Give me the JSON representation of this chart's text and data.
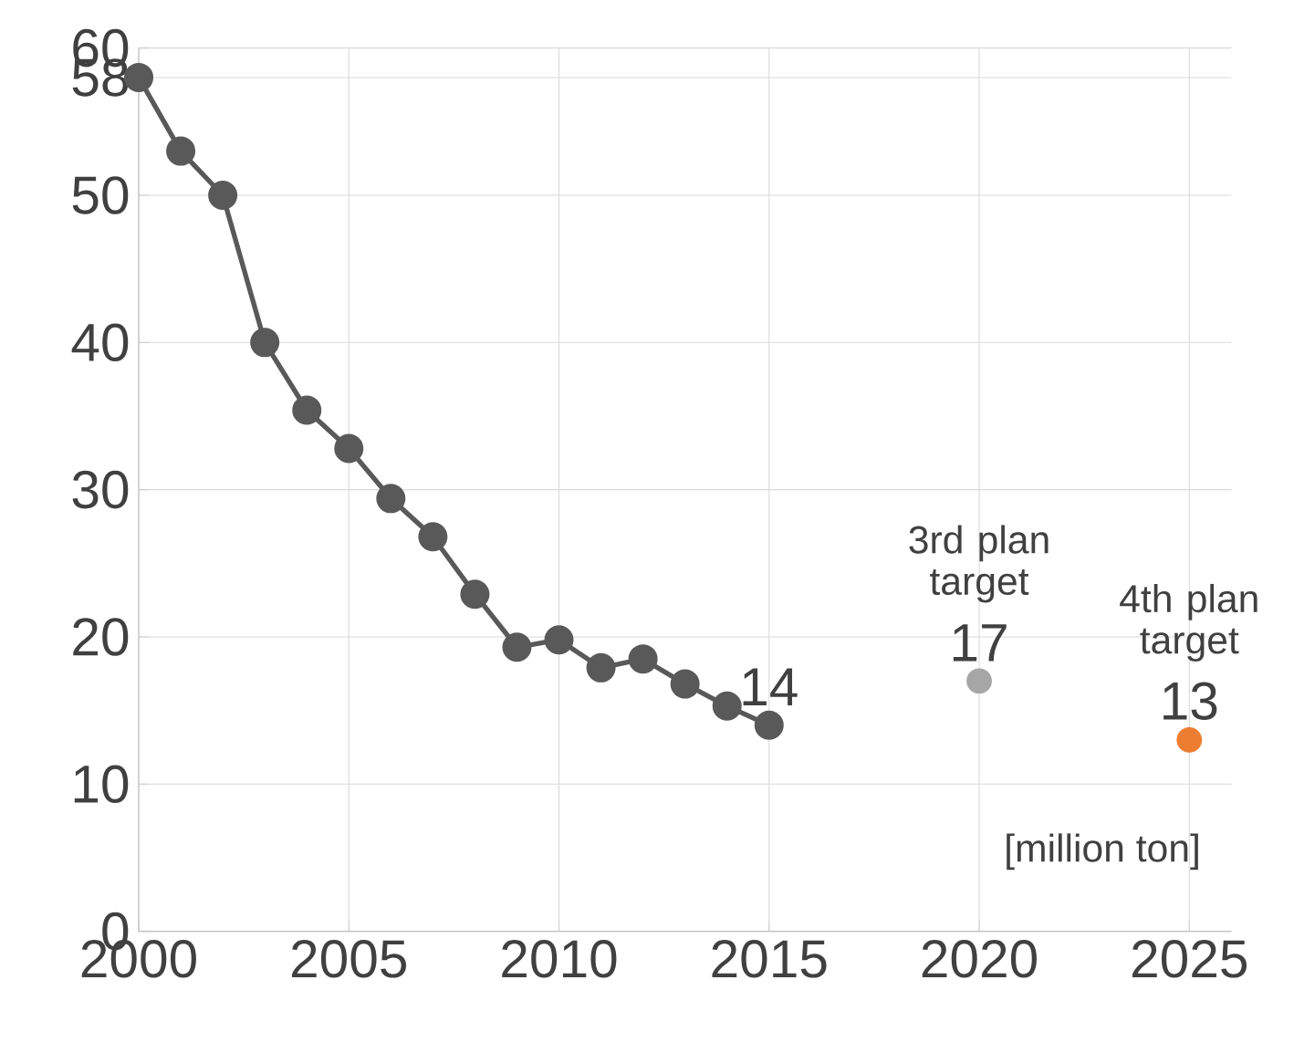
{
  "chart_data": {
    "type": "line",
    "x": [
      2000,
      2001,
      2002,
      2003,
      2004,
      2005,
      2006,
      2007,
      2008,
      2009,
      2010,
      2011,
      2012,
      2013,
      2014,
      2015
    ],
    "series": [
      {
        "color": "#595959",
        "values": [
          58,
          53,
          50,
          40,
          35.4,
          32.8,
          29.4,
          26.8,
          22.9,
          19.3,
          19.8,
          17.9,
          18.5,
          16.8,
          15.3,
          14
        ],
        "value_labels": [
          null,
          null,
          null,
          null,
          null,
          null,
          null,
          null,
          null,
          null,
          null,
          null,
          null,
          null,
          null,
          "14"
        ]
      },
      {
        "type": "scatter",
        "color": "#a6a6a6",
        "x": [
          2020
        ],
        "values": [
          17
        ],
        "value_labels": [
          "17"
        ]
      },
      {
        "type": "scatter",
        "color": "#ed7d31",
        "x": [
          2025
        ],
        "values": [
          13
        ],
        "value_labels": [
          "13"
        ]
      }
    ],
    "annotations": [
      {
        "text": "3rd plan target",
        "x": 2020,
        "y": 17
      },
      {
        "text": "4th plan target",
        "x": 2025,
        "y": 13
      },
      "[million ton]"
    ],
    "xlim": [
      2000,
      2026
    ],
    "ylim": [
      0,
      60
    ],
    "xticks": [
      2000,
      2005,
      2010,
      2015,
      2020,
      2025
    ],
    "yticks": [
      0,
      10,
      20,
      30,
      40,
      50,
      58,
      60
    ],
    "grid": true,
    "marker": "circle",
    "line_style": "solid"
  }
}
